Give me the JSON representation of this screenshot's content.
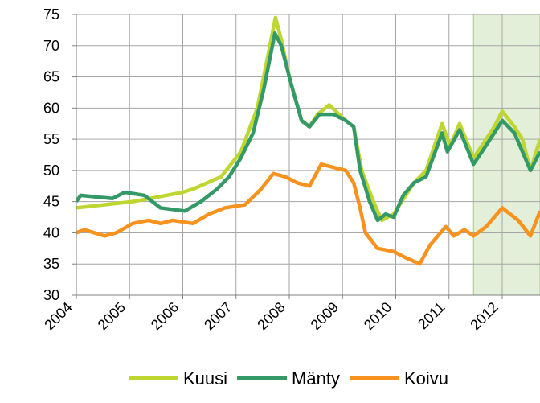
{
  "chart_data": {
    "type": "line",
    "xlim": [
      2004,
      2012.71
    ],
    "xticks": [
      2004,
      2005,
      2006,
      2007,
      2008,
      2009,
      2010,
      2011,
      2012
    ],
    "ylim": [
      30,
      75
    ],
    "yticks": [
      30,
      35,
      40,
      45,
      50,
      55,
      60,
      65,
      70,
      75
    ],
    "grid": true,
    "legend": "bottom",
    "highlight_start": 2011.46,
    "highlight_color": "#e3efd9",
    "series": [
      {
        "name": "Kuusi",
        "color": "#bfd630",
        "x": [
          2004,
          2005.06,
          2006,
          2006.19,
          2006.72,
          2007.09,
          2007.4,
          2007.59,
          2007.74,
          2007.85,
          2008,
          2008.23,
          2008.38,
          2008.53,
          2008.75,
          2009.06,
          2009.21,
          2009.36,
          2009.58,
          2009.74,
          2009.96,
          2010.11,
          2010.34,
          2010.57,
          2010.87,
          2011.02,
          2011.2,
          2011.46,
          2011.62,
          2011.85,
          2012,
          2012.23,
          2012.38,
          2012.53,
          2012.71
        ],
        "values": [
          44,
          45,
          46.5,
          47,
          49,
          53,
          60,
          68,
          74.5,
          71,
          65,
          58,
          57,
          59,
          60.5,
          58,
          57,
          50,
          45,
          42,
          43,
          45,
          48,
          50,
          57.5,
          54,
          57.5,
          52,
          54,
          57,
          59.5,
          57,
          55,
          50,
          55
        ]
      },
      {
        "name": "Mänty",
        "color": "#339966",
        "x": [
          2004,
          2004.08,
          2004.68,
          2004.91,
          2005.28,
          2005.58,
          2006.04,
          2006.34,
          2006.64,
          2006.87,
          2007.09,
          2007.32,
          2007.52,
          2007.73,
          2007.85,
          2008.03,
          2008.23,
          2008.38,
          2008.57,
          2008.83,
          2009.06,
          2009.21,
          2009.33,
          2009.51,
          2009.66,
          2009.81,
          2009.96,
          2010.14,
          2010.34,
          2010.57,
          2010.87,
          2010.97,
          2011.2,
          2011.46,
          2011.62,
          2011.85,
          2012,
          2012.23,
          2012.38,
          2012.53,
          2012.71
        ],
        "values": [
          45,
          46,
          45.5,
          46.5,
          46,
          44,
          43.5,
          45,
          47,
          49,
          52,
          56,
          63,
          72,
          70,
          64,
          58,
          57,
          59,
          59,
          58,
          57,
          50,
          45,
          42,
          43,
          42.5,
          46,
          48,
          49,
          56,
          53,
          56.5,
          51,
          53,
          56,
          58,
          56,
          53,
          50,
          53
        ]
      },
      {
        "name": "Koivu",
        "color": "#f7921e",
        "x": [
          2004,
          2004.15,
          2004.53,
          2004.75,
          2005.06,
          2005.36,
          2005.58,
          2005.81,
          2006.19,
          2006.49,
          2006.79,
          2007.17,
          2007.47,
          2007.7,
          2007.92,
          2008.15,
          2008.38,
          2008.6,
          2008.83,
          2009.06,
          2009.21,
          2009.33,
          2009.43,
          2009.66,
          2009.96,
          2010.19,
          2010.45,
          2010.64,
          2010.94,
          2011.09,
          2011.29,
          2011.46,
          2011.7,
          2012,
          2012.3,
          2012.53,
          2012.71
        ],
        "values": [
          40,
          40.5,
          39.5,
          40,
          41.5,
          42,
          41.5,
          42,
          41.5,
          43,
          44,
          44.5,
          47,
          49.5,
          49,
          48,
          47.5,
          51,
          50.5,
          50,
          48,
          44,
          40,
          37.5,
          37,
          36,
          35,
          38,
          41,
          39.5,
          40.5,
          39.5,
          41,
          44,
          42,
          39.5,
          43.5
        ]
      }
    ]
  }
}
